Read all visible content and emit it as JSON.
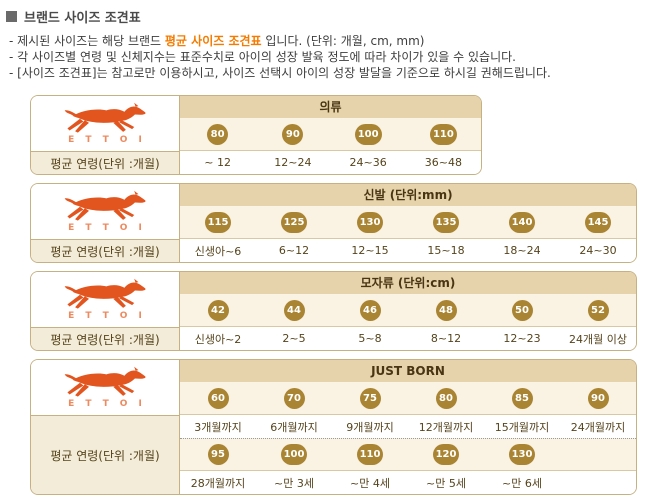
{
  "intro": {
    "title": "브랜드 사이즈 조견표",
    "line1": {
      "pre": "- 제시된 사이즈는 해당 브랜드 ",
      "highlight": "평균 사이즈 조견표",
      "post": " 입니다.  (단위: 개월, cm, mm)"
    },
    "line2": "- 각 사이즈별 연령 및 신체지수는 표준수치로 아이의 성장 발육 정도에 따라 차이가 있을 수 있습니다.",
    "line3": "- [사이즈 조견표]는 참고로만 이용하시고, 사이즈 선택시 아이의 성장 발달을 기준으로 하시길 권해드립니다."
  },
  "logo": {
    "brand": "ETTOI",
    "icon": "horse-icon"
  },
  "row_label": "평균 연령(단위 :개월)",
  "tables": [
    {
      "name": "clothing",
      "header": "의류",
      "columns": 4,
      "size_rows": [
        {
          "sizes": [
            "80",
            "90",
            "100",
            "110"
          ],
          "ages": [
            "~ 12",
            "12~24",
            "24~36",
            "36~48"
          ]
        }
      ]
    },
    {
      "name": "shoes",
      "header": "신발 (단위:mm)",
      "columns": 6,
      "size_rows": [
        {
          "sizes": [
            "115",
            "125",
            "130",
            "135",
            "140",
            "145"
          ],
          "ages": [
            "신생아~6",
            "6~12",
            "12~15",
            "15~18",
            "18~24",
            "24~30"
          ]
        }
      ]
    },
    {
      "name": "hats",
      "header": "모자류 (단위:cm)",
      "columns": 6,
      "size_rows": [
        {
          "sizes": [
            "42",
            "44",
            "46",
            "48",
            "50",
            "52"
          ],
          "ages": [
            "신생아~2",
            "2~5",
            "5~8",
            "8~12",
            "12~23",
            "24개월 이상"
          ]
        }
      ]
    },
    {
      "name": "just-born",
      "header": "JUST BORN",
      "columns": 6,
      "size_rows": [
        {
          "sizes": [
            "60",
            "70",
            "75",
            "80",
            "85",
            "90"
          ],
          "ages": [
            "3개월까지",
            "6개월까지",
            "9개월까지",
            "12개월까지",
            "15개월까지",
            "24개월까지"
          ]
        },
        {
          "sizes": [
            "95",
            "100",
            "110",
            "120",
            "130"
          ],
          "ages": [
            "28개월까지",
            "~만 3세",
            "~만 4세",
            "~만 5세",
            "~만 6세"
          ]
        }
      ]
    }
  ],
  "colors": {
    "accent_orange": "#f57b00",
    "logo_orange": "#e2551f",
    "logo_letters": "#ed8a5f",
    "header_bg": "#e6d3ab",
    "badge_row_bg": "#faf2e2",
    "badge_fill": "#a98432",
    "label_bg": "#f3ecd8",
    "table_border": "#c6b183",
    "inner_border": "#d9c9a2",
    "text_brown": "#55431c",
    "title_gray": "#4a4a4a"
  }
}
